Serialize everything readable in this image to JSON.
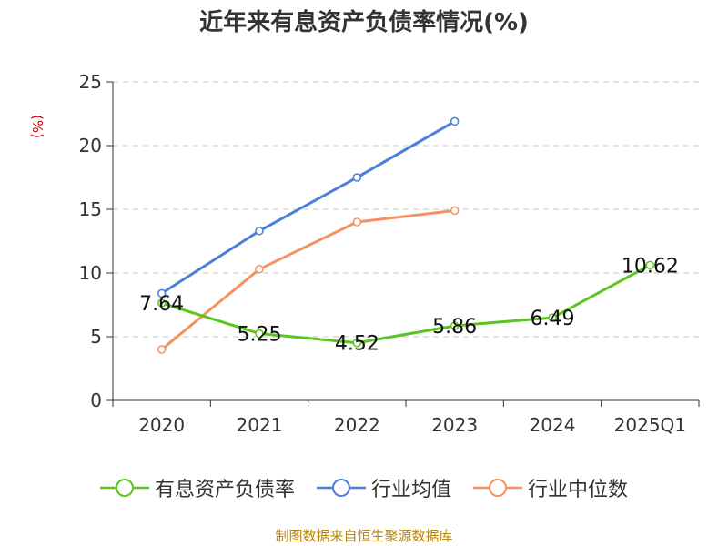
{
  "chart_data": {
    "type": "line",
    "title": "近年来有息资产负债率情况(%)",
    "ylabel": "(%)",
    "xlabel": "",
    "categories": [
      "2020",
      "2021",
      "2022",
      "2023",
      "2024",
      "2025Q1"
    ],
    "ylim": [
      0,
      25
    ],
    "yticks": [
      0,
      5,
      10,
      15,
      20,
      25
    ],
    "grid": true,
    "legend_position": "bottom",
    "series": [
      {
        "name": "有息资产负债率",
        "color": "#5cc41f",
        "values": [
          7.64,
          5.25,
          4.52,
          5.86,
          6.49,
          10.62
        ],
        "show_labels": true
      },
      {
        "name": "行业均值",
        "color": "#4c7fd8",
        "values": [
          8.4,
          13.3,
          17.5,
          21.9,
          null,
          null
        ],
        "show_labels": false
      },
      {
        "name": "行业中位数",
        "color": "#f7915f",
        "values": [
          4.0,
          10.3,
          14.0,
          14.9,
          null,
          null
        ],
        "show_labels": false
      }
    ],
    "data_labels": [
      "7.64",
      "5.25",
      "4.52",
      "5.86",
      "6.49",
      "10.62"
    ]
  },
  "source": "制图数据来自恒生聚源数据库"
}
